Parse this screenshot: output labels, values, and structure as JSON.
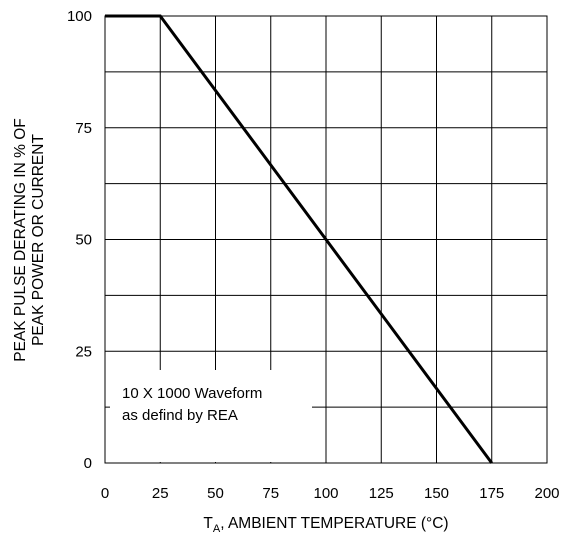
{
  "chart_data": {
    "type": "line",
    "x": [
      0,
      25,
      175
    ],
    "series": [
      {
        "values": [
          100,
          100,
          0
        ]
      }
    ],
    "xlim": [
      0,
      200
    ],
    "ylim": [
      0,
      100
    ],
    "x_ticks": [
      "0",
      "25",
      "50",
      "75",
      "100",
      "125",
      "150",
      "175",
      "200"
    ],
    "y_ticks": [
      "0",
      "25",
      "50",
      "75",
      "100"
    ],
    "x_tick_values": [
      0,
      25,
      50,
      75,
      100,
      125,
      150,
      175,
      200
    ],
    "y_tick_values": [
      0,
      25,
      50,
      75,
      100
    ],
    "x_gridlines": [
      0,
      25,
      50,
      75,
      100,
      125,
      150,
      175,
      200
    ],
    "y_gridlines": [
      0,
      12.5,
      25,
      37.5,
      50,
      62.5,
      75,
      87.5,
      100
    ],
    "grid": true,
    "xlabel": {
      "main": "T",
      "subscript": "A",
      "rest": ", AMBIENT TEMPERATURE (°C)"
    },
    "ylabel_lines": [
      "PEAK PULSE DERATING IN % OF",
      "PEAK POWER OR CURRENT"
    ],
    "annotation_lines": [
      "10 X 1000 Waveform",
      "as defind by REA"
    ],
    "colors": {
      "line": "#000000",
      "grid": "#000000",
      "background": "#ffffff"
    }
  }
}
